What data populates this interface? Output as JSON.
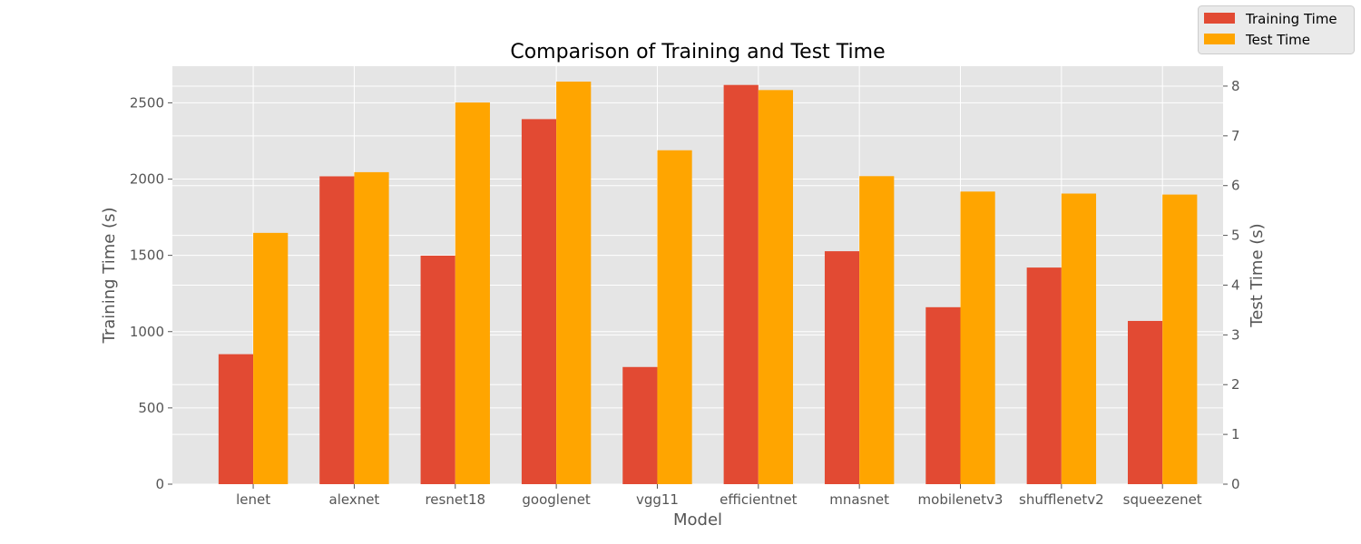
{
  "chart_data": {
    "type": "bar",
    "title": "Comparison of Training and Test Time",
    "xlabel": "Model",
    "ylabel": "Training Time (s)",
    "y2label": "Test Time (s)",
    "categories": [
      "lenet",
      "alexnet",
      "resnet18",
      "googlenet",
      "vgg11",
      "efficientnet",
      "mnasnet",
      "mobilenetv3",
      "shufflenetv2",
      "squeezenet"
    ],
    "series": [
      {
        "name": "Training Time",
        "axis": "left",
        "color": "#E24A33",
        "values": [
          852,
          2018,
          1498,
          2393,
          768,
          2617,
          1527,
          1160,
          1420,
          1070
        ]
      },
      {
        "name": "Test Time",
        "axis": "right",
        "color": "#FFA500",
        "values": [
          5.05,
          6.27,
          7.67,
          8.09,
          6.71,
          7.92,
          6.19,
          5.88,
          5.84,
          5.82
        ]
      }
    ],
    "ylim": [
      0,
      2740
    ],
    "y2lim": [
      0,
      8.4
    ],
    "yticks": [
      0,
      500,
      1000,
      1500,
      2000,
      2500
    ],
    "y2ticks": [
      0,
      1,
      2,
      3,
      4,
      5,
      6,
      7,
      8
    ],
    "grid": true,
    "legend_position": "top-right"
  }
}
